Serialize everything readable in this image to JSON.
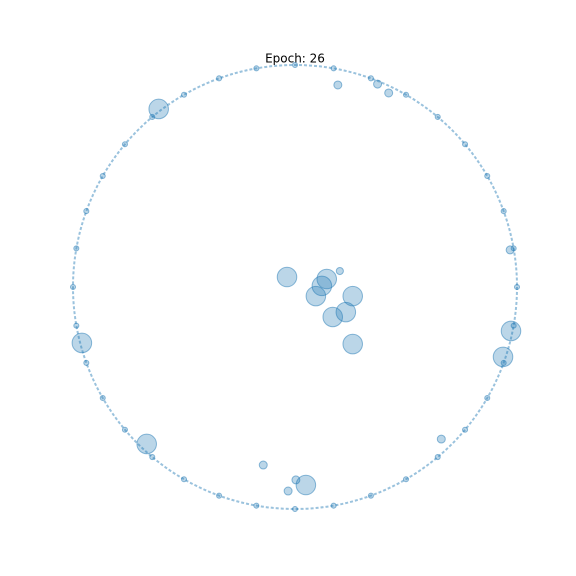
{
  "chart_data": {
    "type": "scatter",
    "title": "Epoch: 26",
    "color": "#1f77b4",
    "alpha": 0.3,
    "xlim": [
      -1.0,
      1.0
    ],
    "ylim": [
      -1.0,
      1.0
    ],
    "x": [
      1,
      0.985,
      0.94,
      0.866,
      0.766,
      0.643,
      0.5,
      0.342,
      0.174,
      0,
      -0.174,
      -0.342,
      -0.5,
      -0.643,
      -0.766,
      -0.866,
      -0.94,
      -0.985,
      -1,
      -0.985,
      -0.94,
      -0.866,
      -0.766,
      -0.643,
      -0.5,
      -0.342,
      -0.174,
      0,
      0.174,
      0.342,
      0.5,
      0.643,
      0.766,
      0.866,
      0.94,
      0.985,
      -0.614,
      -0.96,
      -0.668,
      0.049,
      0.937,
      0.973,
      -0.036,
      0.143,
      0.121,
      0.094,
      0.26,
      0.229,
      0.17,
      0.26,
      0.202,
      0.193,
      0.422,
      0.372,
      -0.143,
      -0.031,
      0.004,
      0.659,
      0.969
    ],
    "y": [
      0,
      0.174,
      0.342,
      0.5,
      0.643,
      0.766,
      0.866,
      0.94,
      0.985,
      1,
      0.985,
      0.94,
      0.866,
      0.766,
      0.643,
      0.5,
      0.342,
      0.174,
      0,
      -0.174,
      -0.342,
      -0.5,
      -0.643,
      -0.766,
      -0.866,
      -0.94,
      -0.985,
      -1,
      -0.985,
      -0.94,
      -0.866,
      -0.766,
      -0.643,
      -0.5,
      -0.342,
      -0.174,
      0.802,
      -0.252,
      -0.707,
      -0.892,
      -0.315,
      -0.198,
      0.045,
      0.036,
      0.005,
      -0.041,
      -0.041,
      -0.113,
      -0.135,
      -0.257,
      0.072,
      0.91,
      0.874,
      0.914,
      -0.802,
      -0.919,
      -0.869,
      -0.685,
      0.167
    ],
    "sizes": [
      20,
      20,
      20,
      20,
      20,
      20,
      20,
      20,
      20,
      20,
      20,
      20,
      20,
      20,
      20,
      20,
      20,
      20,
      20,
      20,
      20,
      20,
      20,
      20,
      20,
      20,
      20,
      20,
      20,
      20,
      20,
      20,
      20,
      20,
      20,
      20,
      300,
      300,
      300,
      300,
      300,
      300,
      300,
      300,
      300,
      300,
      300,
      300,
      300,
      300,
      40,
      50,
      50,
      50,
      50,
      50,
      50,
      50,
      50
    ]
  }
}
